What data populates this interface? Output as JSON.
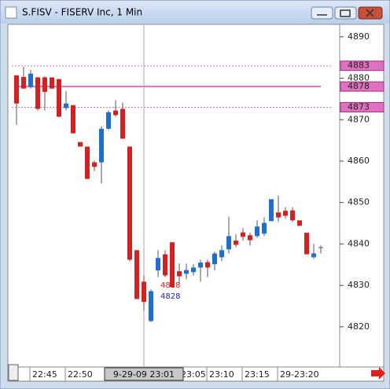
{
  "window_title": "S.FISV - FISERV Inc, 1 Min",
  "chart_data": {
    "type": "candlestick",
    "categories": [
      null,
      null,
      "22:45",
      null,
      null,
      null,
      null,
      "22:50",
      null,
      null,
      null,
      null,
      null,
      null,
      null,
      null,
      null,
      null,
      null,
      null,
      null,
      null,
      null,
      "23:05",
      null,
      null,
      null,
      "23:10",
      null,
      null,
      null,
      null,
      "23:15",
      null,
      null,
      null,
      null,
      "29-23:20",
      null,
      null,
      null,
      null,
      null,
      null
    ],
    "open": [
      4880.7,
      4880.3,
      4877.9,
      4880.2,
      4880.2,
      4880.2,
      4879.8,
      4872.8,
      4873.5,
      4864.6,
      4863.5,
      4859.7,
      4859.7,
      4867.8,
      4872.2,
      4872.6,
      4863.5,
      4838.5,
      4830.9,
      4821.4,
      4833.6,
      4837.5,
      4840.4,
      4833.4,
      4832.8,
      4833.2,
      4834.3,
      4835.6,
      4835.1,
      4836.8,
      4838.7,
      4840.8,
      4842.8,
      4842.1,
      4841.9,
      4842.5,
      4845.5,
      4847.6,
      4848.0,
      4848.1,
      4845.7,
      4842.7,
      4836.8,
      4839.2
    ],
    "high": [
      4880.7,
      4882.8,
      4882.0,
      4880.3,
      4880.5,
      4880.2,
      4879.8,
      4876.9,
      4873.5,
      4864.6,
      4863.5,
      4860.1,
      4868.4,
      4872.2,
      4874.7,
      4874.1,
      4863.5,
      4838.5,
      4832.4,
      4829.0,
      4838.5,
      4838.5,
      4840.4,
      4835.3,
      4835.3,
      4835.1,
      4836.2,
      4836.2,
      4838.1,
      4839.6,
      4846.6,
      4842.3,
      4843.8,
      4842.7,
      4845.7,
      4846.4,
      4850.8,
      4851.7,
      4848.9,
      4848.9,
      4845.7,
      4842.7,
      4840.0,
      4839.6
    ],
    "low": [
      4868.8,
      4877.5,
      4877.5,
      4872.2,
      4872.2,
      4877.5,
      4870.7,
      4872.2,
      4866.7,
      4863.5,
      4855.7,
      4857.6,
      4854.6,
      4867.5,
      4870.7,
      4865.4,
      4835.8,
      4826.7,
      4823.9,
      4821.1,
      4832.0,
      4832.0,
      4829.6,
      4830.2,
      4831.5,
      4832.4,
      4830.9,
      4832.0,
      4833.6,
      4835.8,
      4837.7,
      4839.2,
      4840.8,
      4839.6,
      4841.5,
      4841.9,
      4845.5,
      4845.3,
      4846.1,
      4845.3,
      4844.4,
      4837.5,
      4836.4,
      4837.7
    ],
    "close": [
      4873.9,
      4877.5,
      4881.1,
      4872.6,
      4876.7,
      4877.5,
      4870.7,
      4873.9,
      4866.7,
      4863.5,
      4855.7,
      4858.6,
      4867.8,
      4871.8,
      4871.1,
      4865.4,
      4836.2,
      4826.7,
      4826.0,
      4828.6,
      4836.6,
      4832.4,
      4829.6,
      4832.2,
      4833.7,
      4834.3,
      4835.5,
      4834.3,
      4837.7,
      4838.5,
      4841.9,
      4839.8,
      4841.7,
      4840.9,
      4844.2,
      4845.1,
      4850.8,
      4846.4,
      4846.8,
      4845.7,
      4844.4,
      4837.5,
      4837.7,
      4839.2
    ],
    "up_color": "#1f6fd0",
    "down_color": "#d42020",
    "ylim": [
      4810.3,
      4893.0
    ],
    "yticks": [
      4820,
      4830,
      4840,
      4850,
      4860,
      4870,
      4880,
      4890
    ],
    "hlines": [
      4883,
      4878,
      4873
    ],
    "hline_color": "#e070c0",
    "cursor_index": 18,
    "cursor_label": "9-29-09 23:01",
    "annotations": [
      {
        "text": "4828",
        "color": "#d42020"
      },
      {
        "text": "4828",
        "color": "#2020c0"
      }
    ]
  }
}
